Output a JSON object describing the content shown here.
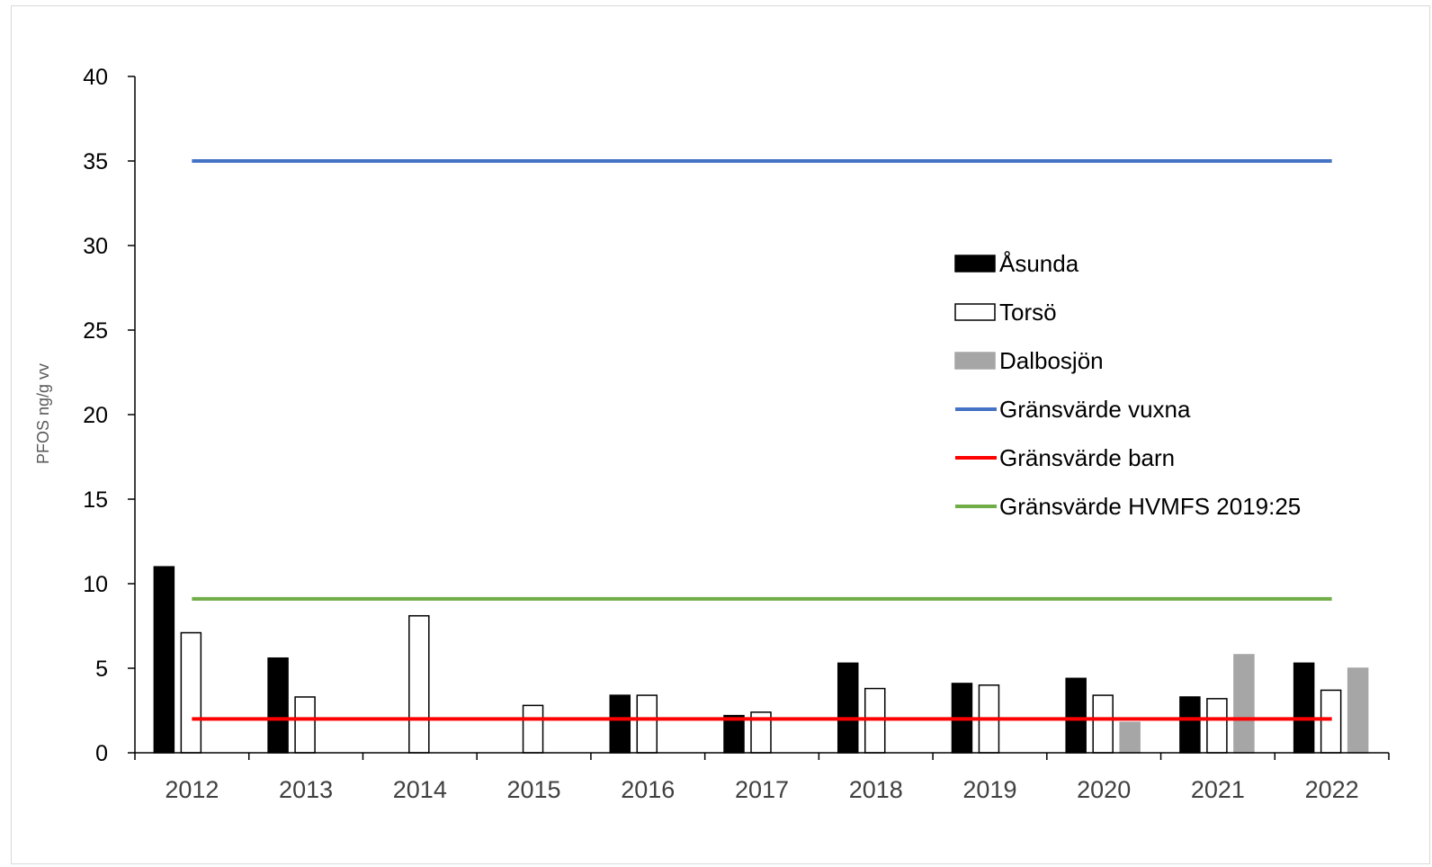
{
  "chart_data": {
    "type": "bar",
    "ylabel": "PFOS ng/g vv",
    "xlabel": "",
    "ylim": [
      0,
      40
    ],
    "yticks": [
      "0",
      "5",
      "10",
      "15",
      "20",
      "25",
      "30",
      "35",
      "40"
    ],
    "categories": [
      "2012",
      "2013",
      "2014",
      "2015",
      "2016",
      "2017",
      "2018",
      "2019",
      "2020",
      "2021",
      "2022"
    ],
    "series": [
      {
        "name": "Åsunda",
        "kind": "bar",
        "fill": "#000000",
        "stroke": "#000000",
        "values": [
          11,
          5.6,
          null,
          null,
          3.4,
          2.2,
          5.3,
          4.1,
          4.4,
          3.3,
          5.3
        ]
      },
      {
        "name": "Torsö",
        "kind": "bar",
        "fill": "#ffffff",
        "stroke": "#000000",
        "values": [
          7.1,
          3.3,
          8.1,
          2.8,
          3.4,
          2.4,
          3.8,
          4.0,
          3.4,
          3.2,
          3.7
        ]
      },
      {
        "name": "Dalbosjön",
        "kind": "bar",
        "fill": "#a6a6a6",
        "stroke": "#a6a6a6",
        "values": [
          null,
          null,
          null,
          null,
          null,
          null,
          null,
          null,
          1.8,
          5.8,
          5.0
        ]
      },
      {
        "name": "Gränsvärde vuxna",
        "kind": "line",
        "color": "#4472c4",
        "value": 35
      },
      {
        "name": "Gränsvärde barn",
        "kind": "line",
        "color": "#ff0000",
        "value": 2
      },
      {
        "name": "Gränsvärde HVMFS 2019:25",
        "kind": "line",
        "color": "#70ad47",
        "value": 9.1
      }
    ],
    "legend_position": "right",
    "grid": false
  }
}
